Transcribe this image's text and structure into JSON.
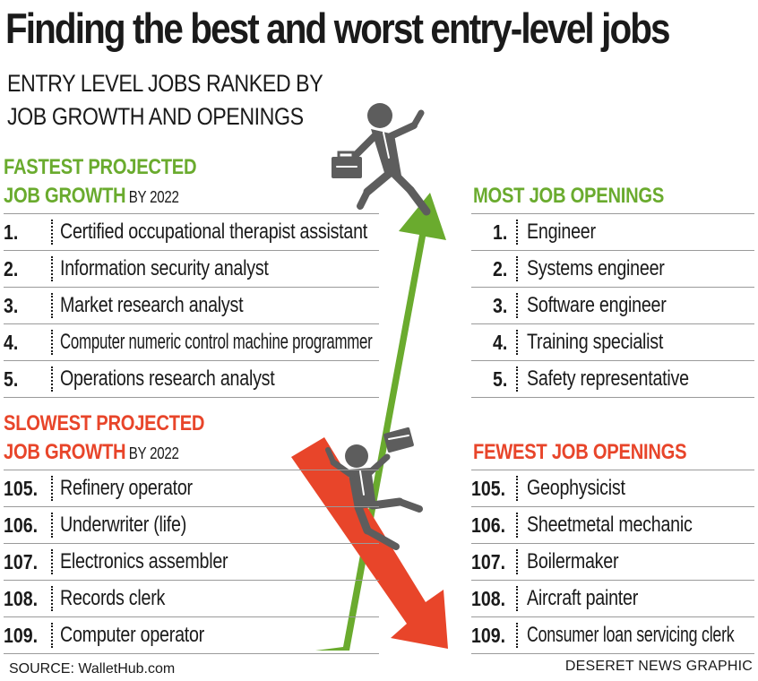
{
  "title": "Finding the best and worst entry-level jobs",
  "subtitle_line1": "ENTRY LEVEL JOBS RANKED BY",
  "subtitle_line2": "JOB GROWTH AND OPENINGS",
  "colors": {
    "green": "#6aab2e",
    "red": "#e8452a",
    "figure": "#5d5d5d"
  },
  "fastest": {
    "heading_line1": "FASTEST PROJECTED",
    "heading_line2": "JOB GROWTH",
    "by": "BY 2022",
    "items": [
      {
        "rank": "1.",
        "job": "Certified occupational therapist assistant"
      },
      {
        "rank": "2.",
        "job": "Information security analyst"
      },
      {
        "rank": "3.",
        "job": "Market research analyst"
      },
      {
        "rank": "4.",
        "job": "Computer numeric control machine programmer"
      },
      {
        "rank": "5.",
        "job": "Operations research analyst"
      }
    ]
  },
  "slowest": {
    "heading_line1": "SLOWEST PROJECTED",
    "heading_line2": "JOB GROWTH",
    "by": "BY 2022",
    "items": [
      {
        "rank": "105.",
        "job": "Refinery operator"
      },
      {
        "rank": "106.",
        "job": "Underwriter (life)"
      },
      {
        "rank": "107.",
        "job": "Electronics assembler"
      },
      {
        "rank": "108.",
        "job": "Records clerk"
      },
      {
        "rank": "109.",
        "job": "Computer operator"
      }
    ]
  },
  "most_openings": {
    "heading": "MOST JOB OPENINGS",
    "items": [
      {
        "rank": "1.",
        "job": "Engineer"
      },
      {
        "rank": "2.",
        "job": "Systems engineer"
      },
      {
        "rank": "3.",
        "job": "Software engineer"
      },
      {
        "rank": "4.",
        "job": "Training specialist"
      },
      {
        "rank": "5.",
        "job": "Safety representative"
      }
    ]
  },
  "fewest_openings": {
    "heading": "FEWEST JOB OPENINGS",
    "items": [
      {
        "rank": "105.",
        "job": "Geophysicist"
      },
      {
        "rank": "106.",
        "job": "Sheetmetal mechanic"
      },
      {
        "rank": "107.",
        "job": "Boilermaker"
      },
      {
        "rank": "108.",
        "job": "Aircraft painter"
      },
      {
        "rank": "109.",
        "job": "Consumer loan servicing clerk"
      }
    ]
  },
  "source": "SOURCE: WalletHub.com",
  "credit": "DESERET NEWS GRAPHIC"
}
